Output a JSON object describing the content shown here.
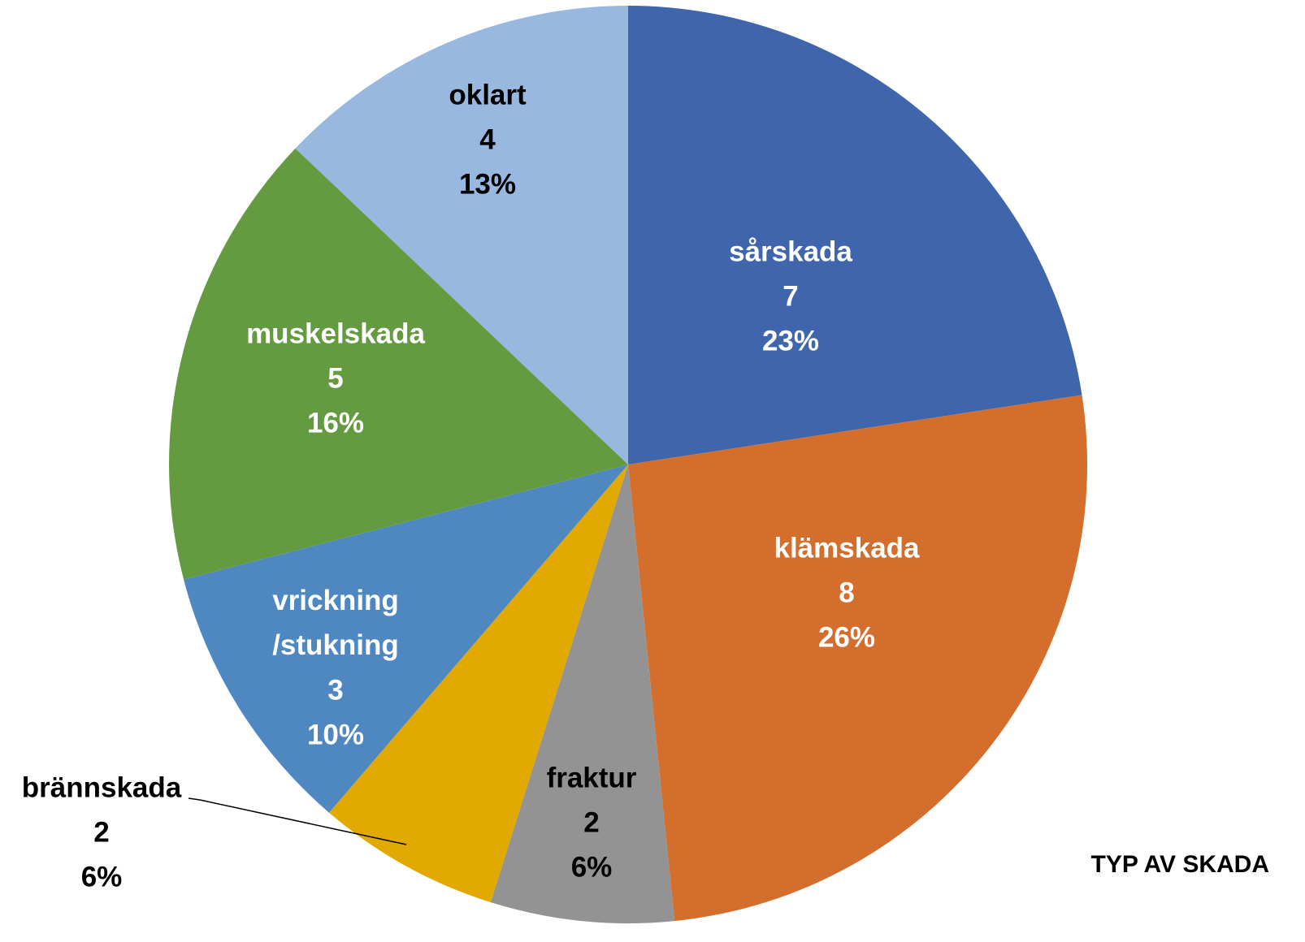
{
  "chart_data": {
    "type": "pie",
    "categories": [
      "sårskada",
      "klämskada",
      "fraktur",
      "brännskada",
      "vrickning\n/stukning",
      "muskelskada",
      "oklart"
    ],
    "values": [
      7,
      8,
      2,
      2,
      3,
      5,
      4
    ],
    "percent_labels": [
      "23%",
      "26%",
      "6%",
      "6%",
      "10%",
      "16%",
      "13%"
    ],
    "colors": [
      "#3f65ad",
      "#d36e2c",
      "#939393",
      "#e2a900",
      "#4f88c0",
      "#659b40",
      "#98b8e0"
    ],
    "label_colors": [
      "#ffffff",
      "#ffffff",
      "#000000",
      "#000000",
      "#ffffff",
      "#ffffff",
      "#000000"
    ],
    "label_title": "TYP AV SKADA"
  }
}
